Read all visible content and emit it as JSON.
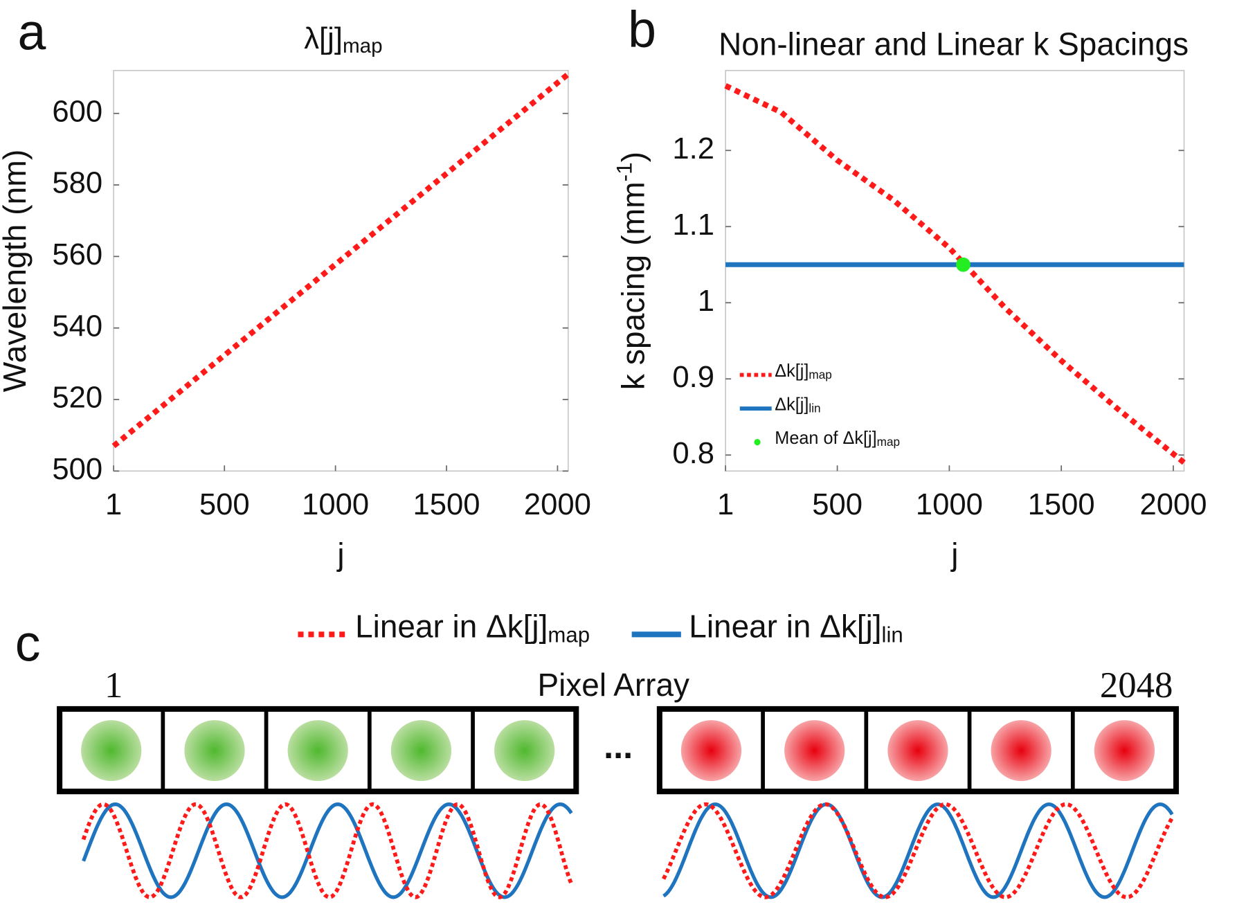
{
  "chart_data": [
    {
      "type": "line",
      "panel": "a",
      "title": "λ[j]",
      "title_sub": "map",
      "xlabel": "j",
      "ylabel": "Wavelength (nm)",
      "xlim": [
        1,
        2048
      ],
      "xticks": [
        1,
        500,
        1000,
        1500,
        2000
      ],
      "ylim": [
        500,
        612
      ],
      "yticks": [
        500,
        520,
        540,
        560,
        580,
        600
      ],
      "series": [
        {
          "color": "#ff1a1a",
          "dash": true,
          "x": [
            1,
            512,
            1024,
            1536,
            2048
          ],
          "values": [
            507,
            533,
            559,
            585,
            611
          ]
        }
      ]
    },
    {
      "type": "line",
      "panel": "b",
      "title": "Non-linear and Linear k Spacings",
      "xlabel": "j",
      "ylabel": "k spacing (mm",
      "ylabel_sup": "-1",
      "ylabel_tail": ")",
      "xlim": [
        1,
        2048
      ],
      "xticks": [
        1,
        500,
        1000,
        1500,
        2000
      ],
      "ylim": [
        0.779,
        1.305
      ],
      "yticks": [
        0.8,
        0.9,
        1,
        1.1,
        1.2
      ],
      "legend": "lower left",
      "series": [
        {
          "name": "Δk[j]",
          "name_sub": "map",
          "color": "#ff1a1a",
          "dash": true,
          "x": [
            1,
            250,
            500,
            750,
            1000,
            1250,
            1500,
            1750,
            2048
          ],
          "values": [
            1.285,
            1.25,
            1.187,
            1.135,
            1.072,
            0.993,
            0.924,
            0.861,
            0.79
          ]
        },
        {
          "name": "Δk[j]",
          "name_sub": "lin",
          "color": "#1f74c0",
          "x": [
            1,
            2048
          ],
          "values": [
            1.05,
            1.05
          ]
        },
        {
          "name": "Mean of Δk[j]",
          "name_sub": "map",
          "color": "#22ee22",
          "scatter": true,
          "x": [
            1062
          ],
          "values": [
            1.05
          ]
        }
      ]
    }
  ],
  "panel_c": {
    "label": "c",
    "title": "Pixel Array",
    "start": "1",
    "end": "2048",
    "ellipsis": "...",
    "legend": [
      {
        "text": "Linear in Δk[j]",
        "sub": "map"
      },
      {
        "text": "Linear in Δk[j]",
        "sub": "lin"
      }
    ]
  }
}
